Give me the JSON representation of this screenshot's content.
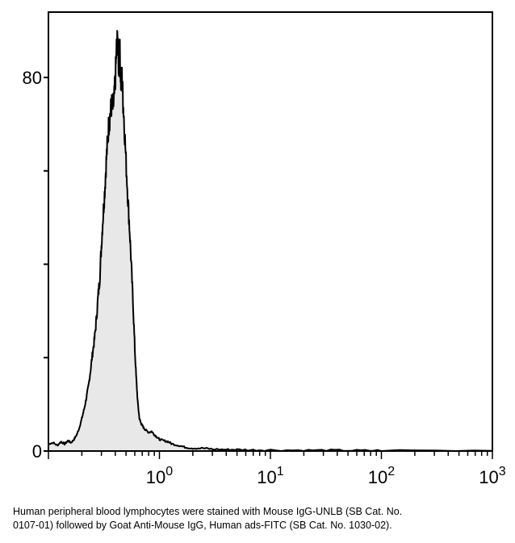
{
  "chart_data": {
    "type": "area",
    "title": "",
    "xlabel": "",
    "ylabel": "",
    "x_scale": "log",
    "xlim": [
      0.1,
      1000
    ],
    "ylim": [
      0,
      94
    ],
    "x_ticks": [
      {
        "value": 1,
        "base": "10",
        "exp": "0"
      },
      {
        "value": 10,
        "base": "10",
        "exp": "1"
      },
      {
        "value": 100,
        "base": "10",
        "exp": "2"
      },
      {
        "value": 1000,
        "base": "10",
        "exp": "3"
      }
    ],
    "y_ticks": [
      0,
      20,
      40,
      60,
      80
    ],
    "y_tick_labels": [
      {
        "value": 0,
        "label": "0"
      },
      {
        "value": 80,
        "label": "80"
      }
    ],
    "grid": false,
    "legend": "none",
    "colors": {
      "fill": "#e8e8e8",
      "line": "#000000",
      "frame": "#000000"
    },
    "series": [
      {
        "x": [
          0.1,
          0.11,
          0.12,
          0.13,
          0.14,
          0.15,
          0.16,
          0.17,
          0.18,
          0.19,
          0.2,
          0.21,
          0.22,
          0.23,
          0.24,
          0.25,
          0.26,
          0.27,
          0.28,
          0.29,
          0.3,
          0.31,
          0.32,
          0.33,
          0.34,
          0.35,
          0.36,
          0.37,
          0.38,
          0.39,
          0.4,
          0.41,
          0.42,
          0.43,
          0.44,
          0.45,
          0.46,
          0.47,
          0.48,
          0.5,
          0.52,
          0.54,
          0.56,
          0.58,
          0.6,
          0.62,
          0.64,
          0.66,
          0.68,
          0.7,
          0.72,
          0.75,
          0.8,
          0.85,
          0.9,
          0.95,
          1.0,
          1.1,
          1.2,
          1.3,
          1.5,
          1.7,
          2.0,
          2.5,
          3.0,
          4.0,
          5.0,
          7.0,
          10,
          20,
          35,
          60,
          100,
          1000
        ],
        "values": [
          1.5,
          1.8,
          1.2,
          2.0,
          1.5,
          2.2,
          1.8,
          2.5,
          3.5,
          5.0,
          7.0,
          9.0,
          11.5,
          14.0,
          17.5,
          21.0,
          24.0,
          28.0,
          33.0,
          37.0,
          44.0,
          50.0,
          55.0,
          61.0,
          66.0,
          70.0,
          72.0,
          74.0,
          73.5,
          75.0,
          79.0,
          86.0,
          88.0,
          82.0,
          85.0,
          79.0,
          80.0,
          75.0,
          71.0,
          62.0,
          54.0,
          47.0,
          39.0,
          31.0,
          22.0,
          15.0,
          10.0,
          7.0,
          6.0,
          5.5,
          5.0,
          4.5,
          4.0,
          4.2,
          3.5,
          3.0,
          2.5,
          2.2,
          2.0,
          1.5,
          1.2,
          0.8,
          0.6,
          0.6,
          0.4,
          0.3,
          0.3,
          0.2,
          0.2,
          0.15,
          0.15,
          0.1,
          0.1,
          0.05
        ]
      }
    ]
  },
  "caption": {
    "line1": "Human peripheral blood lymphocytes were stained with Mouse IgG-UNLB (SB Cat. No.",
    "line2": "0107-01) followed by Goat Anti-Mouse IgG, Human ads-FITC (SB Cat. No. 1030-02)."
  }
}
